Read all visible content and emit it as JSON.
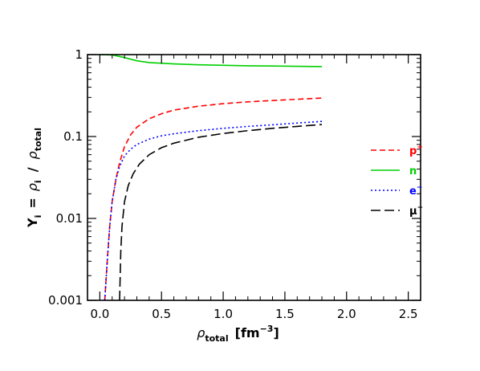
{
  "chart_data": {
    "type": "line",
    "x_axis": {
      "range": [
        -0.1,
        2.6
      ],
      "ticks": [
        0.0,
        0.5,
        1.0,
        1.5,
        2.0,
        2.5
      ],
      "tick_labels": [
        "0.0",
        "0.5",
        "1.0",
        "1.5",
        "2.0",
        "2.5"
      ],
      "label": {
        "symbol": "ρ",
        "sub": "total",
        "unit_prefix": "[fm",
        "unit_exp": "−3",
        "unit_suffix": "]"
      }
    },
    "y_axis": {
      "scale": "log",
      "range": [
        0.001,
        1
      ],
      "ticks": [
        0.001,
        0.01,
        0.1,
        1
      ],
      "tick_labels": [
        "0.001",
        "0.01",
        "0.1",
        "1"
      ],
      "label": {
        "Y": "Y",
        "Y_sub": "i",
        "eq": "=",
        "rho_i": "ρ",
        "rho_i_sub": "i",
        "slash": "/",
        "rho_t": "ρ",
        "rho_t_sub": "total"
      }
    },
    "grid": false,
    "legend_position": "right",
    "series": [
      {
        "name": "p+",
        "label": "p",
        "label_sup": "+",
        "color": "#ff0000",
        "dash": "dashed",
        "x": [
          0.04,
          0.06,
          0.08,
          0.1,
          0.13,
          0.16,
          0.2,
          0.25,
          0.3,
          0.4,
          0.5,
          0.6,
          0.8,
          1.0,
          1.2,
          1.4,
          1.6,
          1.8
        ],
        "y": [
          0.001,
          0.003,
          0.008,
          0.016,
          0.03,
          0.048,
          0.075,
          0.105,
          0.13,
          0.165,
          0.19,
          0.21,
          0.235,
          0.252,
          0.265,
          0.275,
          0.285,
          0.295
        ]
      },
      {
        "name": "n",
        "label": "n",
        "label_sup": "",
        "color": "#00d000",
        "dash": "solid",
        "x": [
          0.0,
          0.1,
          0.2,
          0.3,
          0.4,
          0.6,
          0.8,
          1.0,
          1.2,
          1.4,
          1.6,
          1.8
        ],
        "y": [
          1.0,
          0.99,
          0.92,
          0.84,
          0.8,
          0.77,
          0.75,
          0.74,
          0.73,
          0.725,
          0.72,
          0.715
        ]
      },
      {
        "name": "e-",
        "label": "e",
        "label_sup": "−",
        "color": "#0000ff",
        "dash": "dotted",
        "x": [
          0.04,
          0.06,
          0.08,
          0.1,
          0.13,
          0.16,
          0.2,
          0.25,
          0.3,
          0.4,
          0.5,
          0.6,
          0.8,
          1.0,
          1.2,
          1.4,
          1.6,
          1.8
        ],
        "y": [
          0.001,
          0.003,
          0.008,
          0.016,
          0.03,
          0.043,
          0.058,
          0.07,
          0.08,
          0.093,
          0.102,
          0.108,
          0.118,
          0.126,
          0.133,
          0.139,
          0.146,
          0.153
        ]
      },
      {
        "name": "mu-",
        "label": "μ",
        "label_sup": "−",
        "color": "#000000",
        "dash": "longdash",
        "x": [
          0.16,
          0.17,
          0.18,
          0.2,
          0.23,
          0.27,
          0.32,
          0.4,
          0.5,
          0.6,
          0.8,
          1.0,
          1.2,
          1.4,
          1.6,
          1.8
        ],
        "y": [
          0.001,
          0.004,
          0.008,
          0.016,
          0.025,
          0.035,
          0.046,
          0.06,
          0.073,
          0.083,
          0.098,
          0.109,
          0.118,
          0.126,
          0.133,
          0.14
        ]
      }
    ]
  }
}
